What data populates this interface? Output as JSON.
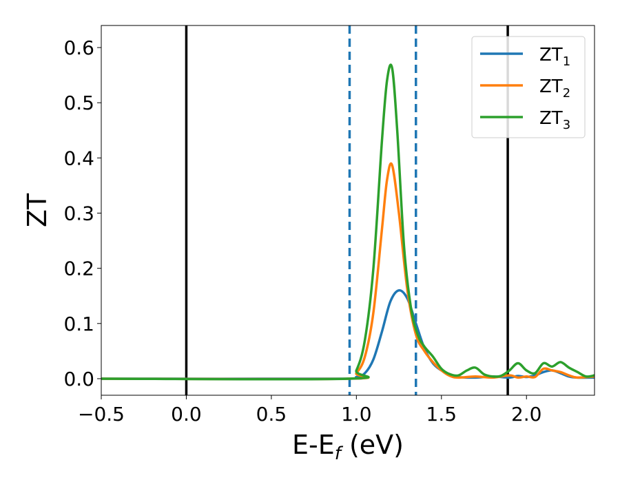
{
  "chart_data": {
    "type": "line",
    "title": "",
    "xlabel": "E-E",
    "xlabel_sub": "f",
    "xlabel_unit": "(eV)",
    "ylabel": "ZT",
    "xlim": [
      -0.5,
      2.4
    ],
    "ylim": [
      -0.03,
      0.64
    ],
    "xticks": [
      -0.5,
      0.0,
      0.5,
      1.0,
      1.5,
      2.0
    ],
    "xtick_labels": [
      "−0.5",
      "0.0",
      "0.5",
      "1.0",
      "1.5",
      "2.0"
    ],
    "yticks": [
      0.0,
      0.1,
      0.2,
      0.3,
      0.4,
      0.5,
      0.6
    ],
    "ytick_labels": [
      "0.0",
      "0.1",
      "0.2",
      "0.3",
      "0.4",
      "0.5",
      "0.6"
    ],
    "legend_position": "top-right",
    "vertical_lines": [
      {
        "x": 0.0,
        "color": "#000000",
        "style": "solid"
      },
      {
        "x": 1.89,
        "color": "#000000",
        "style": "solid"
      },
      {
        "x": 0.96,
        "color": "#1f77b4",
        "style": "dashed"
      },
      {
        "x": 1.35,
        "color": "#1f77b4",
        "style": "dashed"
      }
    ],
    "series": [
      {
        "name": "ZT",
        "sub": "1",
        "color": "#1f77b4",
        "x": [
          -0.5,
          0.9,
          1.0,
          1.05,
          1.1,
          1.15,
          1.2,
          1.25,
          1.3,
          1.35,
          1.4,
          1.45,
          1.5,
          1.55,
          1.6,
          1.7,
          1.8,
          1.9,
          1.95,
          2.0,
          2.05,
          2.1,
          2.15,
          2.2,
          2.25,
          2.3,
          2.4
        ],
        "y": [
          0.0,
          0.0,
          0.003,
          0.01,
          0.035,
          0.085,
          0.14,
          0.16,
          0.145,
          0.1,
          0.055,
          0.028,
          0.015,
          0.008,
          0.003,
          0.002,
          0.004,
          0.002,
          0.005,
          0.003,
          0.006,
          0.012,
          0.015,
          0.01,
          0.004,
          0.002,
          0.002
        ]
      },
      {
        "name": "ZT",
        "sub": "2",
        "color": "#ff7f0e",
        "x": [
          -0.5,
          0.95,
          1.0,
          1.05,
          1.1,
          1.15,
          1.18,
          1.21,
          1.25,
          1.3,
          1.35,
          1.4,
          1.45,
          1.5,
          1.55,
          1.6,
          1.7,
          1.8,
          1.9,
          1.95,
          2.0,
          2.05,
          2.1,
          2.15,
          2.2,
          2.25,
          2.3,
          2.4
        ],
        "y": [
          0.0,
          0.0,
          0.01,
          0.04,
          0.12,
          0.27,
          0.36,
          0.387,
          0.3,
          0.16,
          0.08,
          0.05,
          0.03,
          0.015,
          0.005,
          0.002,
          0.004,
          0.002,
          0.006,
          0.002,
          0.004,
          0.003,
          0.018,
          0.015,
          0.012,
          0.006,
          0.002,
          0.004
        ]
      },
      {
        "name": "ZT",
        "sub": "3",
        "color": "#2ca02c",
        "x": [
          -0.5,
          0.95,
          1.0,
          1.05,
          1.1,
          1.15,
          1.18,
          1.21,
          1.24,
          1.28,
          1.32,
          1.36,
          1.4,
          1.45,
          1.5,
          1.55,
          1.6,
          1.65,
          1.7,
          1.75,
          1.8,
          1.85,
          1.9,
          1.95,
          2.0,
          2.05,
          2.1,
          2.15,
          2.2,
          2.25,
          2.3,
          2.35,
          2.4
        ],
        "y": [
          0.0,
          0.0,
          0.015,
          0.07,
          0.2,
          0.43,
          0.54,
          0.563,
          0.45,
          0.24,
          0.13,
          0.08,
          0.058,
          0.04,
          0.018,
          0.008,
          0.006,
          0.015,
          0.02,
          0.008,
          0.004,
          0.005,
          0.015,
          0.028,
          0.015,
          0.01,
          0.028,
          0.022,
          0.03,
          0.02,
          0.012,
          0.004,
          0.006
        ]
      }
    ]
  }
}
